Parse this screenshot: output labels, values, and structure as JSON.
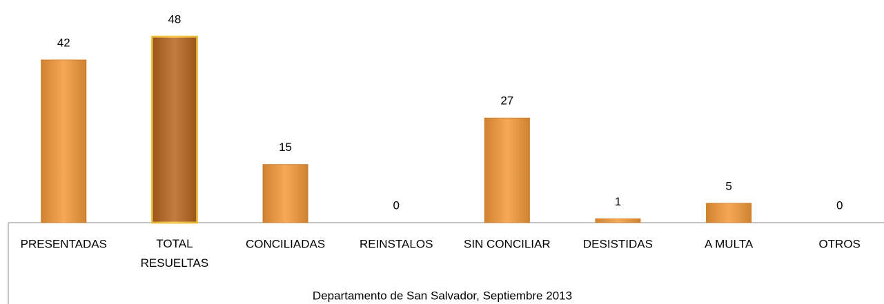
{
  "chart_data": {
    "type": "bar",
    "x_label": "Departamento de San Salvador, Septiembre 2013",
    "categories": [
      "PRESENTADAS",
      "TOTAL RESUELTAS",
      "CONCILIADAS",
      "REINSTALOS",
      "SIN CONCILIAR",
      "DESISTIDAS",
      "A MULTA",
      "OTROS"
    ],
    "values": [
      42,
      48,
      15,
      0,
      27,
      1,
      5,
      0
    ],
    "colors": [
      "#f39a3a",
      "#b8641e",
      "#f39a3a",
      "#f39a3a",
      "#f39a3a",
      "#f39a3a",
      "#f39a3a",
      "#f39a3a"
    ],
    "ylim": [
      0,
      50
    ]
  }
}
